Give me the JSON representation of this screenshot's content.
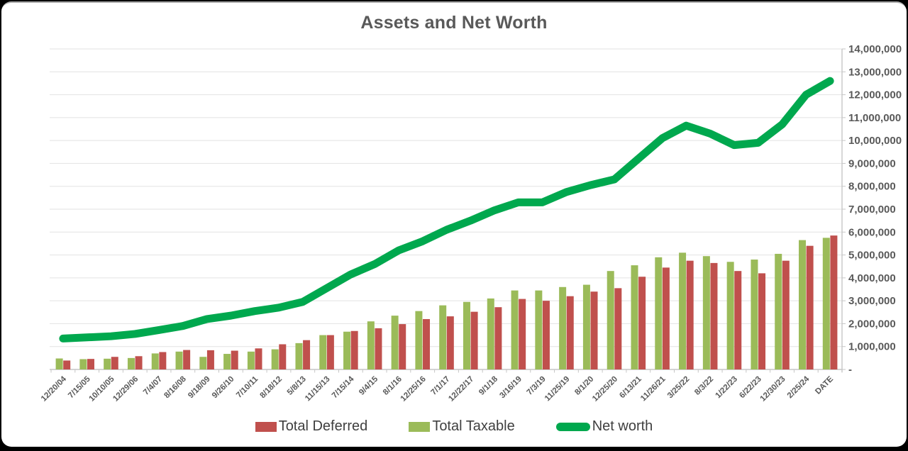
{
  "title": "Assets and Net Worth",
  "colors": {
    "deferred": "#C0504D",
    "taxable": "#9BBB59",
    "net_worth": "#00A84E",
    "gridline": "#E2E2E2",
    "axis": "#C6C6C6",
    "axis_text": "#595959",
    "legend_text": "#3F3F3F",
    "title_text": "#595959"
  },
  "legend": {
    "items": [
      {
        "label": "Total Deferred",
        "swatch": "bar",
        "color": "#C0504D"
      },
      {
        "label": "Total Taxable",
        "swatch": "bar",
        "color": "#9BBB59"
      },
      {
        "label": "Net worth",
        "swatch": "line",
        "color": "#00A84E"
      }
    ]
  },
  "chart_data": {
    "type": "bar+line",
    "title": "Assets and Net Worth",
    "xlabel": "",
    "ylabel": "",
    "ylim": [
      0,
      14000000
    ],
    "y_tick_step": 1000000,
    "y_axis_side": "right",
    "grid": true,
    "legend_position": "bottom",
    "bar_order_left_to_right": [
      "Total Taxable",
      "Total Deferred"
    ],
    "y_tick_labels_top_to_bottom": [
      "14,000,000",
      "13,000,000",
      "12,000,000",
      "11,000,000",
      "10,000,000",
      "9,000,000",
      "8,000,000",
      "7,000,000",
      "6,000,000",
      "5,000,000",
      "4,000,000",
      "3,000,000",
      "2,000,000",
      "1,000,000",
      "-"
    ],
    "categories": [
      "12/20/04",
      "7/15/05",
      "10/10/05",
      "12/29/06",
      "7/4/07",
      "8/16/08",
      "9/18/09",
      "9/26/10",
      "7/10/11",
      "8/18/12",
      "5/8/13",
      "11/15/13",
      "7/15/14",
      "9/4/15",
      "8/1/16",
      "12/25/16",
      "7/1/17",
      "12/22/17",
      "9/1/18",
      "3/16/19",
      "7/3/19",
      "11/25/19",
      "8/1/20",
      "12/25/20",
      "6/13/21",
      "11/26/21",
      "3/25/22",
      "8/3/22",
      "1/22/23",
      "6/22/23",
      "12/30/23",
      "2/25/24",
      "DATE"
    ],
    "series": [
      {
        "name": "Total Taxable",
        "type": "bar",
        "color": "#9BBB59",
        "values": [
          480000,
          450000,
          470000,
          500000,
          700000,
          780000,
          550000,
          680000,
          780000,
          880000,
          1150000,
          1500000,
          1650000,
          2100000,
          2350000,
          2550000,
          2800000,
          2950000,
          3100000,
          3450000,
          3450000,
          3600000,
          3700000,
          4300000,
          4550000,
          4900000,
          5100000,
          4950000,
          4700000,
          4800000,
          5050000,
          5650000,
          5750000
        ]
      },
      {
        "name": "Total Deferred",
        "type": "bar",
        "color": "#C0504D",
        "values": [
          390000,
          460000,
          550000,
          580000,
          760000,
          850000,
          840000,
          820000,
          920000,
          1100000,
          1280000,
          1500000,
          1680000,
          1800000,
          1980000,
          2200000,
          2320000,
          2520000,
          2720000,
          3080000,
          3000000,
          3200000,
          3400000,
          3550000,
          4050000,
          4450000,
          4750000,
          4650000,
          4300000,
          4200000,
          4750000,
          5400000,
          5850000
        ]
      },
      {
        "name": "Net worth",
        "type": "line",
        "color": "#00A84E",
        "values": [
          1350000,
          1400000,
          1450000,
          1550000,
          1720000,
          1900000,
          2200000,
          2350000,
          2550000,
          2700000,
          2950000,
          3550000,
          4150000,
          4600000,
          5200000,
          5600000,
          6100000,
          6500000,
          6950000,
          7300000,
          7300000,
          7750000,
          8050000,
          8300000,
          9200000,
          10100000,
          10650000,
          10300000,
          9800000,
          9900000,
          10700000,
          12000000,
          12600000
        ]
      }
    ]
  }
}
